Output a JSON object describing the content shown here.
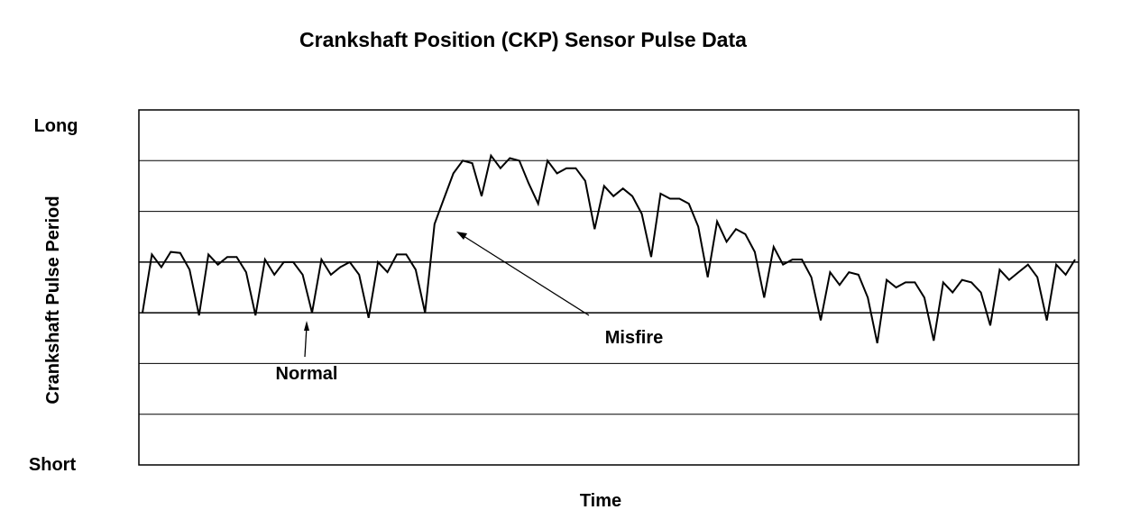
{
  "chart_data": {
    "type": "line",
    "title": "Crankshaft Position (CKP) Sensor Pulse Data",
    "xlabel": "Time",
    "ylabel": "Crankshaft Pulse Period",
    "y_tick_labels": {
      "top": "Long",
      "bottom": "Short"
    },
    "ylim": [
      0,
      7
    ],
    "grid": true,
    "annotations": [
      {
        "text": "Normal"
      },
      {
        "text": "Misfire"
      }
    ],
    "series": [
      {
        "values": [
          3.0,
          4.15,
          3.9,
          4.2,
          4.18,
          3.85,
          2.95,
          4.15,
          3.95,
          4.1,
          4.1,
          3.8,
          2.95,
          4.05,
          3.75,
          4.0,
          4.0,
          3.75,
          3.0,
          4.05,
          3.75,
          3.9,
          4.0,
          3.75,
          2.9,
          4.0,
          3.8,
          4.15,
          4.15,
          3.85,
          3.0,
          4.75,
          5.25,
          5.75,
          6.0,
          5.95,
          5.3,
          6.1,
          5.85,
          6.05,
          6.0,
          5.55,
          5.15,
          6.0,
          5.75,
          5.85,
          5.85,
          5.6,
          4.65,
          5.5,
          5.3,
          5.45,
          5.3,
          4.95,
          4.1,
          5.35,
          5.25,
          5.25,
          5.15,
          4.7,
          3.7,
          4.8,
          4.4,
          4.65,
          4.55,
          4.2,
          3.3,
          4.3,
          3.95,
          4.05,
          4.05,
          3.7,
          2.85,
          3.8,
          3.55,
          3.8,
          3.75,
          3.3,
          2.4,
          3.65,
          3.5,
          3.6,
          3.6,
          3.3,
          2.45,
          3.6,
          3.4,
          3.65,
          3.6,
          3.4,
          2.75,
          3.85,
          3.65,
          3.8,
          3.95,
          3.7,
          2.85,
          3.95,
          3.75,
          4.05
        ]
      }
    ]
  }
}
